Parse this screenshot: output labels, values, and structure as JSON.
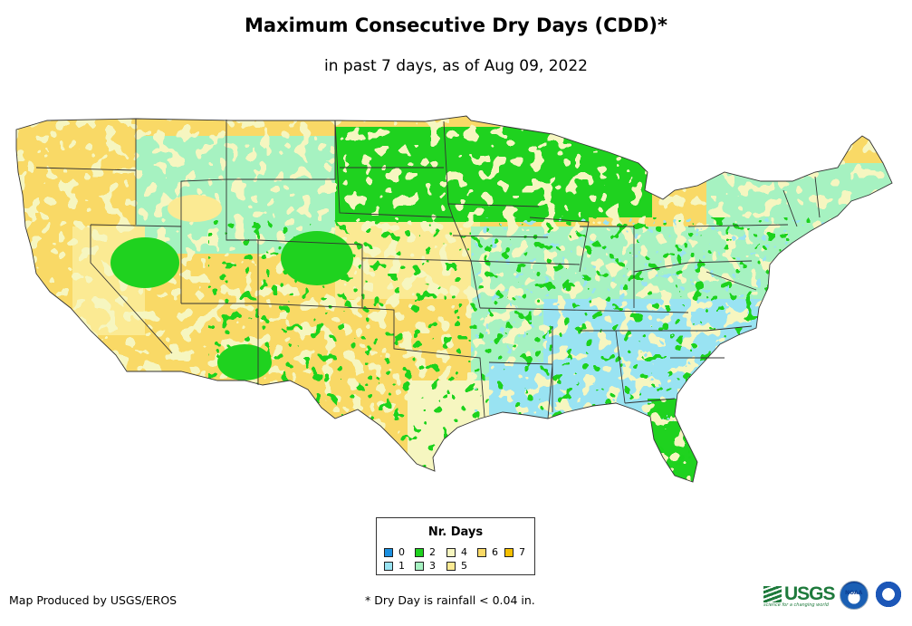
{
  "title": "Maximum Consecutive Dry Days (CDD)*",
  "subtitle": "in past 7 days, as of Aug 09, 2022",
  "legend": {
    "title": "Nr. Days",
    "items": [
      {
        "label": "0",
        "color": "#1a8fe0"
      },
      {
        "label": "1",
        "color": "#99e3f2"
      },
      {
        "label": "2",
        "color": "#1fd21f"
      },
      {
        "label": "3",
        "color": "#a6f2c1"
      },
      {
        "label": "4",
        "color": "#f6f6c0"
      },
      {
        "label": "5",
        "color": "#fbea93"
      },
      {
        "label": "6",
        "color": "#f9d966"
      },
      {
        "label": "7",
        "color": "#f5c000"
      }
    ]
  },
  "credit": "Map Produced by USGS/EROS",
  "footnote": "* Dry Day is rainfall < 0.04 in.",
  "logos": {
    "usgs": "USGS",
    "usgs_tagline": "science for a changing world",
    "noaa": "NOAA"
  }
}
